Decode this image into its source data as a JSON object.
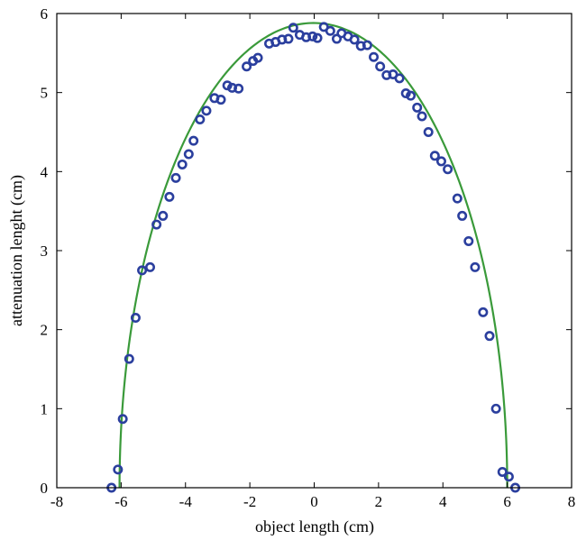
{
  "chart_data": {
    "type": "scatter",
    "title": "",
    "xlabel": "object length (cm)",
    "ylabel": "attenuation lenght (cm)",
    "xlim": [
      -8,
      8
    ],
    "ylim": [
      0,
      6
    ],
    "xticks": [
      -8,
      -6,
      -4,
      -2,
      0,
      2,
      4,
      6,
      8
    ],
    "yticks": [
      0,
      1,
      2,
      3,
      4,
      5,
      6
    ],
    "xtick_labels": [
      "-8",
      "-6",
      "-4",
      "-2",
      "0",
      "2",
      "4",
      "6",
      "8"
    ],
    "ytick_labels": [
      "0",
      "1",
      "2",
      "3",
      "4",
      "5",
      "6"
    ],
    "grid": false,
    "colors": {
      "points": "#2b3f9e",
      "fit": "#3a9a3a",
      "frame": "#000000"
    },
    "series": [
      {
        "kind": "scatter",
        "marker": "open-circle",
        "points": [
          [
            -6.3,
            0.0
          ],
          [
            -6.1,
            0.23
          ],
          [
            -5.95,
            0.87
          ],
          [
            -5.75,
            1.63
          ],
          [
            -5.55,
            2.15
          ],
          [
            -5.35,
            2.75
          ],
          [
            -5.1,
            2.79
          ],
          [
            -4.9,
            3.33
          ],
          [
            -4.7,
            3.44
          ],
          [
            -4.5,
            3.68
          ],
          [
            -4.3,
            3.92
          ],
          [
            -4.1,
            4.09
          ],
          [
            -3.9,
            4.22
          ],
          [
            -3.75,
            4.39
          ],
          [
            -3.55,
            4.66
          ],
          [
            -3.35,
            4.77
          ],
          [
            -3.1,
            4.93
          ],
          [
            -2.9,
            4.91
          ],
          [
            -2.7,
            5.09
          ],
          [
            -2.55,
            5.06
          ],
          [
            -2.35,
            5.05
          ],
          [
            -2.1,
            5.33
          ],
          [
            -1.9,
            5.4
          ],
          [
            -1.75,
            5.44
          ],
          [
            -1.4,
            5.62
          ],
          [
            -1.2,
            5.64
          ],
          [
            -1.0,
            5.67
          ],
          [
            -0.8,
            5.68
          ],
          [
            -0.65,
            5.82
          ],
          [
            -0.45,
            5.73
          ],
          [
            -0.25,
            5.7
          ],
          [
            -0.05,
            5.71
          ],
          [
            0.1,
            5.69
          ],
          [
            0.3,
            5.83
          ],
          [
            0.5,
            5.78
          ],
          [
            0.7,
            5.68
          ],
          [
            0.85,
            5.75
          ],
          [
            1.05,
            5.71
          ],
          [
            1.25,
            5.67
          ],
          [
            1.45,
            5.59
          ],
          [
            1.65,
            5.6
          ],
          [
            1.85,
            5.45
          ],
          [
            2.05,
            5.33
          ],
          [
            2.25,
            5.22
          ],
          [
            2.45,
            5.23
          ],
          [
            2.65,
            5.18
          ],
          [
            2.85,
            4.99
          ],
          [
            3.0,
            4.96
          ],
          [
            3.2,
            4.81
          ],
          [
            3.35,
            4.7
          ],
          [
            3.55,
            4.5
          ],
          [
            3.75,
            4.2
          ],
          [
            3.95,
            4.13
          ],
          [
            4.15,
            4.03
          ],
          [
            4.45,
            3.66
          ],
          [
            4.6,
            3.44
          ],
          [
            4.8,
            3.12
          ],
          [
            5.0,
            2.79
          ],
          [
            5.25,
            2.22
          ],
          [
            5.45,
            1.92
          ],
          [
            5.65,
            1.0
          ],
          [
            5.85,
            0.2
          ],
          [
            6.05,
            0.14
          ],
          [
            6.25,
            0.0
          ]
        ]
      },
      {
        "kind": "line",
        "fit": "ellipse",
        "x_range": [
          -6.05,
          6.0
        ],
        "peak": 5.88
      }
    ]
  }
}
